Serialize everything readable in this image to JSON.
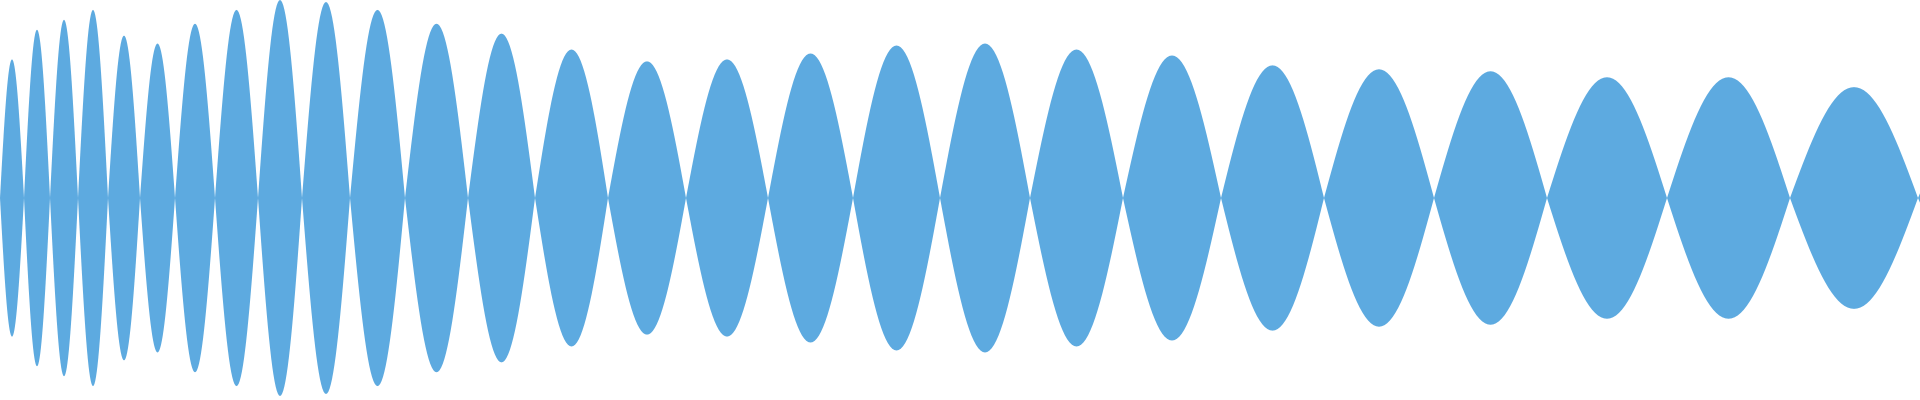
{
  "waveform": {
    "fill_color": "#5DAAE0",
    "background_color": "#FFFFFF",
    "lobe_count": 30,
    "lobes_amplitude_fraction": [
      0.7,
      0.85,
      0.9,
      0.95,
      0.82,
      0.78,
      0.88,
      0.95,
      1.0,
      0.99,
      0.95,
      0.88,
      0.83,
      0.75,
      0.69,
      0.7,
      0.73,
      0.77,
      0.78,
      0.75,
      0.72,
      0.67,
      0.65,
      0.64,
      0.61,
      0.61,
      0.56,
      0.52,
      0.42,
      0.1
    ]
  }
}
